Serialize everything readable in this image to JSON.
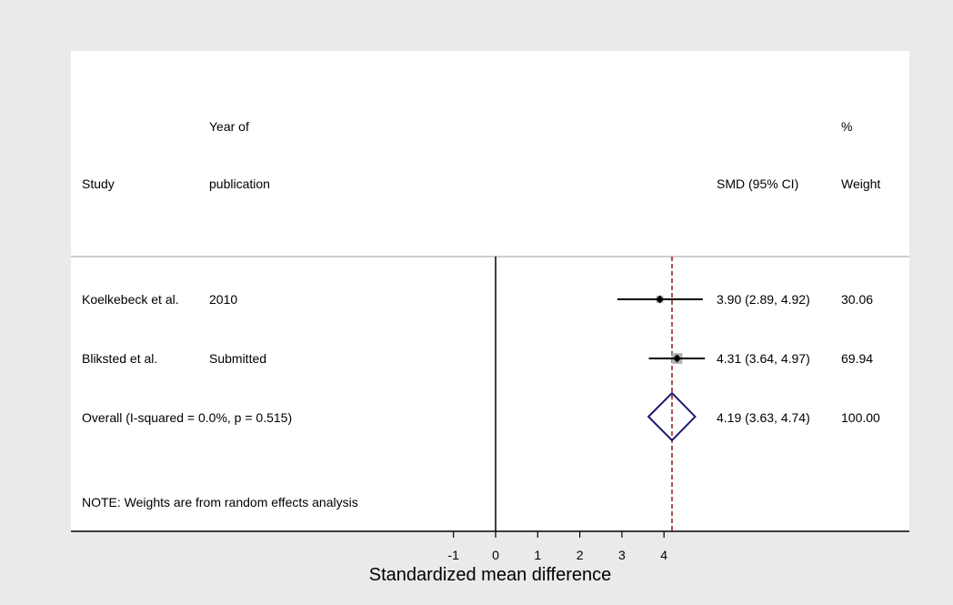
{
  "headers": {
    "study": "Study",
    "year_line1": "Year of",
    "year_line2": "publication",
    "smd": "SMD (95% CI)",
    "weight_line1": "%",
    "weight_line2": "Weight"
  },
  "colors": {
    "background": "#eaeaea",
    "panel": "#ffffff",
    "estimate_line": "#8b1a1a",
    "diamond": "#1a1a6e",
    "weight_box": "#b0b0b0",
    "text": "#000000"
  },
  "chart_data": {
    "type": "forest",
    "xlabel": "Standardized mean difference",
    "xticks": [
      -1,
      0,
      1,
      2,
      3,
      4
    ],
    "null_value": 0,
    "studies": [
      {
        "name": "Koelkebeck et al.",
        "year": "2010",
        "smd": 3.9,
        "lower": 2.89,
        "upper": 4.92,
        "ci_text": "3.90 (2.89, 4.92)",
        "weight": 30.06,
        "weight_text": "30.06"
      },
      {
        "name": "Bliksted et al.",
        "year": "Submitted",
        "smd": 4.31,
        "lower": 3.64,
        "upper": 4.97,
        "ci_text": "4.31 (3.64, 4.97)",
        "weight": 69.94,
        "weight_text": "69.94"
      }
    ],
    "overall": {
      "label": "Overall  (I-squared = 0.0%, p = 0.515)",
      "smd": 4.19,
      "lower": 3.63,
      "upper": 4.74,
      "ci_text": "4.19 (3.63, 4.74)",
      "weight_text": "100.00"
    },
    "note": "NOTE: Weights are from random effects analysis"
  }
}
